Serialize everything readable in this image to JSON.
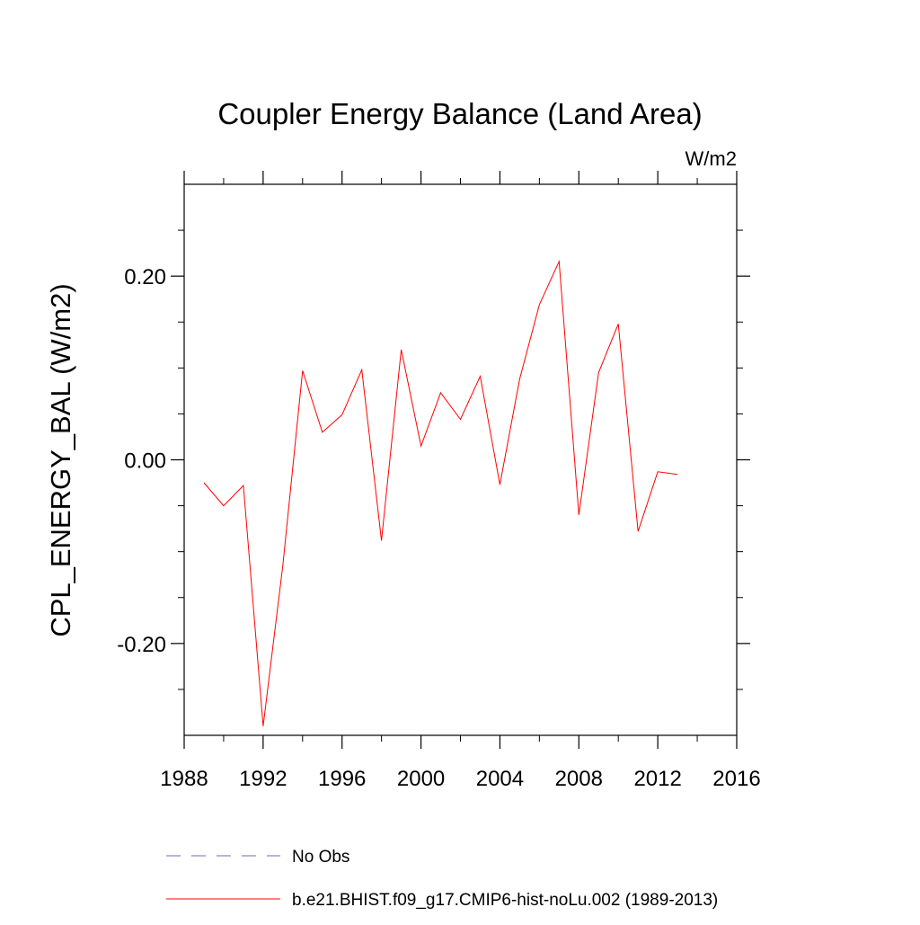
{
  "chart_data": {
    "type": "line",
    "title": "Coupler Energy Balance (Land Area)",
    "units": "W/m2",
    "ylabel": "CPL_ENERGY_BAL  (W/m2)",
    "xlabel": "",
    "xlim": [
      1988,
      2016
    ],
    "ylim": [
      -0.3,
      0.3
    ],
    "grid": false,
    "legend_position": "bottom",
    "x_ticks": [
      1988,
      1992,
      1996,
      2000,
      2004,
      2008,
      2012,
      2016
    ],
    "x_tick_labels": [
      "1988",
      "1992",
      "1996",
      "2000",
      "2004",
      "2008",
      "2012",
      "2016"
    ],
    "y_ticks": [
      -0.2,
      0.0,
      0.2
    ],
    "y_tick_labels": [
      "-0.20",
      "0.00",
      "0.20"
    ],
    "series": [
      {
        "name": "No Obs",
        "color": "#6b6bbf",
        "dash": "dashed",
        "x": [],
        "values": []
      },
      {
        "name": "b.e21.BHIST.f09_g17.CMIP6-hist-noLu.002 (1989-2013)",
        "color": "#ff0000",
        "dash": "solid",
        "x": [
          1989,
          1990,
          1991,
          1992,
          1993,
          1994,
          1995,
          1996,
          1997,
          1998,
          1999,
          2000,
          2001,
          2002,
          2003,
          2004,
          2005,
          2006,
          2007,
          2008,
          2009,
          2010,
          2011,
          2012,
          2013
        ],
        "values": [
          -0.025,
          -0.05,
          -0.028,
          -0.29,
          -0.115,
          0.097,
          0.03,
          0.049,
          0.098,
          -0.088,
          0.12,
          0.015,
          0.073,
          0.044,
          0.091,
          -0.027,
          0.088,
          0.169,
          0.216,
          -0.06,
          0.095,
          0.148,
          -0.078,
          -0.013,
          -0.016
        ]
      }
    ]
  }
}
